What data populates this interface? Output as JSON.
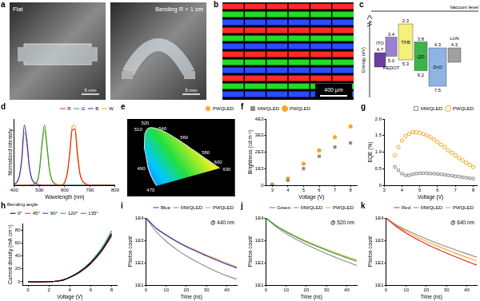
{
  "panel_labels": [
    "a",
    "b",
    "c",
    "d",
    "e",
    "f",
    "g",
    "h",
    "i",
    "j",
    "k"
  ],
  "photos": [
    {
      "label": "Flat",
      "scale_bar": "5 mm"
    },
    {
      "label": "Bending R = 1 cm",
      "scale_bar": "5 mm"
    }
  ],
  "micrograph": {
    "scale_bar": "400 μm",
    "colors": [
      "#ff2a2a",
      "#22dd22",
      "#2a4dff"
    ]
  },
  "energy_diagram": {
    "vacuum_level_label": "Vacuum level",
    "y_label": "Energy (eV)",
    "layers": [
      {
        "name": "ITO",
        "top": 4.7,
        "color": "#6a3fa0"
      },
      {
        "name": "PEDOT",
        "top": 3.4,
        "bottom": {
          "value": 5,
          "label": "5.0"
        },
        "color": "#9b7fd0"
      },
      {
        "name": "TFB",
        "top": 2.3,
        "bottom": 5.3,
        "color": "#f4f07a"
      },
      {
        "name": "QD",
        "top": 3.8,
        "bottom": 6.2,
        "color": "#3cb44b"
      },
      {
        "name": "ZnO",
        "top": 4.3,
        "bottom": 7.5,
        "color": "#8fb4e3"
      },
      {
        "name": "Li/Al",
        "top": 4.3,
        "color": "#a0a0a0"
      }
    ]
  },
  "chart_data": [
    {
      "type": "line",
      "x_label": "Wavelength (nm)",
      "y_label": "Normalized intensity",
      "x": [
        400,
        410,
        420,
        430,
        440,
        450,
        460,
        470,
        480,
        490,
        500,
        510,
        520,
        530,
        540,
        550,
        560,
        570,
        580,
        590,
        600,
        610,
        620,
        630,
        640,
        650,
        660,
        670,
        680,
        690,
        700,
        710,
        720,
        730,
        740,
        750,
        760,
        770,
        780,
        790,
        800
      ],
      "xlim": [
        400,
        800
      ],
      "xticks": [
        400,
        500,
        600,
        700,
        800
      ],
      "ylim": [
        0,
        1.1
      ],
      "tick_labels": "x",
      "grid": false,
      "legend": "top-right",
      "series": [
        {
          "name": "R",
          "color": "#e8211d",
          "values": [
            0,
            0,
            0,
            0,
            0,
            0,
            0,
            0,
            0,
            0,
            0,
            0,
            0,
            0,
            0,
            0,
            0,
            0,
            0,
            0,
            0.05,
            0.19,
            0.52,
            0.92,
            0.93,
            0.52,
            0.19,
            0.07,
            0.03,
            0.01,
            0,
            0,
            0,
            0,
            0,
            0,
            0,
            0,
            0,
            0,
            0
          ]
        },
        {
          "name": "G",
          "color": "#1ca33a",
          "values": [
            0,
            0,
            0,
            0,
            0,
            0,
            0,
            0.01,
            0.02,
            0.05,
            0.25,
            0.7,
            1,
            0.65,
            0.25,
            0.08,
            0.03,
            0.01,
            0,
            0,
            0,
            0,
            0,
            0,
            0,
            0,
            0,
            0,
            0,
            0,
            0,
            0,
            0,
            0,
            0,
            0,
            0,
            0,
            0,
            0,
            0
          ]
        },
        {
          "name": "B",
          "color": "#2b2bd6",
          "values": [
            0.02,
            0.05,
            0.15,
            0.45,
            1,
            0.75,
            0.3,
            0.1,
            0.04,
            0.02,
            0.01,
            0,
            0,
            0,
            0,
            0,
            0,
            0,
            0,
            0,
            0,
            0,
            0,
            0,
            0,
            0,
            0,
            0,
            0,
            0,
            0,
            0,
            0,
            0,
            0,
            0,
            0,
            0,
            0,
            0,
            0
          ]
        },
        {
          "name": "W",
          "color": "#f5a623",
          "values": [
            0.02,
            0.04,
            0.13,
            0.4,
            0.88,
            0.65,
            0.28,
            0.1,
            0.05,
            0.06,
            0.24,
            0.65,
            0.92,
            0.6,
            0.24,
            0.08,
            0.03,
            0.01,
            0,
            0.01,
            0.05,
            0.2,
            0.58,
            0.98,
            1,
            0.6,
            0.22,
            0.08,
            0.03,
            0.01,
            0,
            0,
            0,
            0,
            0,
            0,
            0,
            0,
            0,
            0,
            0
          ]
        }
      ]
    },
    {
      "type": "chromaticity",
      "xlim": [
        -0.15,
        0.85
      ],
      "ylim": [
        -0.08,
        0.95
      ],
      "tick_labels": false,
      "grid": false,
      "legend": "top-right",
      "series": [
        {
          "type": "line",
          "color": "#dddddd",
          "x": [
            0.1241,
            0.0913,
            0.0454,
            0.0082,
            0.0139,
            0.0743,
            0.1547,
            0.2296,
            0.3016,
            0.3731,
            0.4441,
            0.5125,
            0.5752,
            0.627,
            0.6915,
            0.7079
          ],
          "values": [
            0.0578,
            0.1327,
            0.295,
            0.5384,
            0.7502,
            0.8338,
            0.8059,
            0.7543,
            0.6923,
            0.6245,
            0.5547,
            0.4866,
            0.4242,
            0.3725,
            0.3083,
            0.292
          ],
          "wavelengths": [
            470,
            null,
            490,
            null,
            510,
            520,
            null,
            540,
            null,
            560,
            null,
            580,
            null,
            600,
            null,
            630
          ]
        },
        {
          "type": "scatter",
          "color": "#000000",
          "marker": "circle",
          "x": [
            0.68,
            0.19,
            0.15
          ],
          "values": [
            0.31,
            0.73,
            0.06
          ]
        },
        {
          "name": "PWQLED",
          "type": "scatter",
          "color": "#f5a623",
          "marker": "star",
          "x": [
            0.31
          ],
          "values": [
            0.3
          ]
        }
      ]
    },
    {
      "type": "scatter",
      "x_label": "Voltage (V)",
      "y_label": "Brightness (cd m⁻²)",
      "x": [
        3,
        4,
        5,
        6,
        7,
        8
      ],
      "xlim": [
        2.6,
        8.4
      ],
      "xticks": [
        3,
        4,
        5,
        6,
        7,
        8
      ],
      "ylim": [
        0,
        4000
      ],
      "yticks": [
        0,
        {
          "value": 1000,
          "label": "1E3"
        },
        {
          "value": 2000,
          "label": "2E3"
        },
        {
          "value": 3000,
          "label": "3E3"
        },
        {
          "value": 4000,
          "label": "4E3"
        }
      ],
      "grid": false,
      "legend": "top-left",
      "series": [
        {
          "name": "MWQLED",
          "color": "#8c8c8c",
          "marker": "square",
          "values": [
            20,
            300,
            1000,
            1750,
            2300,
            2550
          ]
        },
        {
          "name": "PWQLED",
          "color": "#f5a623",
          "marker": "circle",
          "values": [
            30,
            400,
            1300,
            2100,
            2900,
            3550
          ]
        }
      ]
    },
    {
      "type": "scatter",
      "x_label": "Voltage (V)",
      "y_label": "EQE (%)",
      "x": [
        3.6,
        3.8,
        4,
        4.2,
        4.4,
        4.6,
        4.8,
        5,
        5.2,
        5.4,
        5.6,
        5.8,
        6,
        6.2,
        6.4,
        6.6,
        6.8,
        7,
        7.2,
        7.4,
        7.6,
        7.8,
        8
      ],
      "xlim": [
        3,
        8.2
      ],
      "xticks": [
        3,
        4,
        5,
        6,
        7,
        8
      ],
      "ylim": [
        0,
        2
      ],
      "yticks": [
        0,
        0.5,
        {
          "value": 1,
          "label": "1.0"
        },
        1.5,
        {
          "value": 2,
          "label": "2.0"
        }
      ],
      "grid": false,
      "legend": "top-right",
      "series": [
        {
          "name": "MWQLED",
          "color": "#8c8c8c",
          "marker": "open_square",
          "values": [
            0.55,
            0.45,
            0.35,
            0.3,
            0.3,
            0.33,
            0.35,
            0.36,
            0.36,
            0.36,
            0.35,
            0.35,
            0.34,
            0.33,
            0.32,
            0.3,
            0.29,
            0.27,
            0.26,
            0.24,
            0.23,
            0.21,
            0.2
          ]
        },
        {
          "name": "PWQLED",
          "color": "#f5a623",
          "marker": "open_circle",
          "values": [
            0.9,
            1.15,
            1.35,
            1.48,
            1.55,
            1.6,
            1.6,
            1.58,
            1.55,
            1.5,
            1.45,
            1.38,
            1.3,
            1.22,
            1.15,
            1.05,
            0.98,
            0.9,
            0.82,
            0.75,
            0.68,
            0.62,
            0.55
          ]
        }
      ]
    },
    {
      "type": "line",
      "x_label": "Voltage (V)",
      "y_label": "Current density (mA cm⁻²)",
      "x": [
        0,
        0.5,
        1,
        1.5,
        2,
        2.5,
        3,
        3.5,
        4,
        4.5,
        5,
        5.5,
        6,
        6.5,
        7,
        7.5,
        8
      ],
      "xlim": [
        -0.5,
        8.5
      ],
      "xticks": [
        0,
        2,
        4,
        6,
        8
      ],
      "ylim": [
        -5,
        90
      ],
      "yticks": [
        0,
        20,
        40,
        60,
        80
      ],
      "grid": false,
      "legend": "top-left",
      "legend_title": "Bending angle",
      "series": [
        {
          "name": "0°",
          "color": "#000000",
          "values": [
            0,
            0,
            0,
            0,
            0.2,
            0.6,
            1.5,
            3.5,
            7,
            11,
            16,
            22,
            29,
            38,
            48,
            60,
            74
          ]
        },
        {
          "name": "45°",
          "color": "#e8211d",
          "values": [
            0,
            0,
            0,
            0,
            0.2,
            0.6,
            1.5,
            3.4,
            6.8,
            10.8,
            15.6,
            21.5,
            28.4,
            37,
            47,
            59,
            72
          ]
        },
        {
          "name": "90°",
          "color": "#2b2bd6",
          "values": [
            0,
            0,
            0,
            0,
            0.2,
            0.6,
            1.4,
            3.3,
            6.6,
            10.5,
            15.2,
            21,
            27.8,
            36.5,
            46,
            58,
            71
          ]
        },
        {
          "name": "120°",
          "color": "#1ca33a",
          "values": [
            0,
            0,
            0,
            0,
            0.2,
            0.6,
            1.6,
            3.7,
            7.4,
            11.6,
            17,
            23.4,
            31,
            40.5,
            51,
            64,
            79
          ]
        },
        {
          "name": "135°",
          "color": "#8b2be2",
          "values": [
            0,
            0,
            0,
            0,
            0.2,
            0.6,
            1.5,
            3.5,
            7,
            11.1,
            16.2,
            22.3,
            29.5,
            38.5,
            48.5,
            61,
            75
          ]
        }
      ]
    },
    {
      "type": "line",
      "log": "y",
      "annotations": [
        "@ 440 nm"
      ],
      "x_label": "Time (ns)",
      "y_label": "Photon count",
      "x": [
        0,
        5,
        10,
        15,
        20,
        25,
        30,
        35,
        40,
        45
      ],
      "xlim": [
        0,
        45
      ],
      "xticks": [
        0,
        10,
        20,
        30,
        40
      ],
      "ylim": [
        10,
        10000
      ],
      "yticks": [
        {
          "value": 10,
          "label": "1E1"
        },
        {
          "value": 100,
          "label": "1E2"
        },
        {
          "value": 1000,
          "label": "1E3"
        },
        {
          "value": 10000,
          "label": "1E4"
        }
      ],
      "grid": false,
      "legend": "top-right",
      "series": [
        {
          "name": "Blue",
          "color": "#2b2bd6",
          "values": [
            10000,
            3500,
            1700,
            900,
            520,
            320,
            200,
            130,
            85,
            58
          ]
        },
        {
          "name": "MWQLED",
          "color": "#8c8c8c",
          "values": [
            10000,
            2500,
            900,
            400,
            200,
            110,
            65,
            40,
            26,
            18
          ]
        },
        {
          "name": "PWQLED",
          "color": "#f5a623",
          "values": [
            10000,
            3600,
            1800,
            950,
            560,
            350,
            220,
            145,
            95,
            65
          ]
        }
      ]
    },
    {
      "type": "line",
      "log": "y",
      "annotations": [
        "@ 520 nm"
      ],
      "x_label": "Time (ns)",
      "y_label": "Photon count",
      "x": [
        0,
        5,
        10,
        15,
        20,
        25,
        30,
        35,
        40,
        45
      ],
      "xlim": [
        0,
        45
      ],
      "xticks": [
        0,
        10,
        20,
        30,
        40
      ],
      "ylim": [
        10,
        10000
      ],
      "yticks": [
        {
          "value": 10,
          "label": "1E1"
        },
        {
          "value": 100,
          "label": "1E2"
        },
        {
          "value": 1000,
          "label": "1E3"
        },
        {
          "value": 10000,
          "label": "1E4"
        }
      ],
      "grid": false,
      "legend": "top-right",
      "series": [
        {
          "name": "Green",
          "color": "#1ca33a",
          "values": [
            10000,
            4500,
            2400,
            1400,
            850,
            550,
            360,
            240,
            165,
            115
          ]
        },
        {
          "name": "MWQLED",
          "color": "#8c8c8c",
          "values": [
            10000,
            4000,
            2000,
            1100,
            650,
            400,
            250,
            165,
            110,
            75
          ]
        },
        {
          "name": "PWQLED",
          "color": "#f5a623",
          "values": [
            10000,
            4600,
            2500,
            1500,
            920,
            600,
            400,
            270,
            185,
            130
          ]
        }
      ]
    },
    {
      "type": "line",
      "log": "y",
      "annotations": [
        "@ 640 nm"
      ],
      "x_label": "Time (ns)",
      "y_label": "Photon count",
      "x": [
        0,
        5,
        10,
        15,
        20,
        25,
        30,
        35,
        40,
        45
      ],
      "xlim": [
        0,
        45
      ],
      "xticks": [
        0,
        10,
        20,
        30,
        40
      ],
      "ylim": [
        10,
        10000
      ],
      "yticks": [
        {
          "value": 10,
          "label": "1E1"
        },
        {
          "value": 100,
          "label": "1E2"
        },
        {
          "value": 1000,
          "label": "1E3"
        },
        {
          "value": 10000,
          "label": "1E4"
        }
      ],
      "grid": false,
      "legend": "top-right",
      "series": [
        {
          "name": "Red",
          "color": "#e8211d",
          "values": [
            10000,
            4200,
            2100,
            1150,
            680,
            420,
            270,
            175,
            115,
            78
          ]
        },
        {
          "name": "MWQLED",
          "color": "#8c8c8c",
          "values": [
            10000,
            5000,
            2900,
            1800,
            1150,
            760,
            520,
            360,
            250,
            175
          ]
        },
        {
          "name": "PWQLED",
          "color": "#f5a623",
          "values": [
            10000,
            4600,
            2500,
            1450,
            900,
            580,
            380,
            255,
            175,
            120
          ]
        }
      ]
    }
  ]
}
